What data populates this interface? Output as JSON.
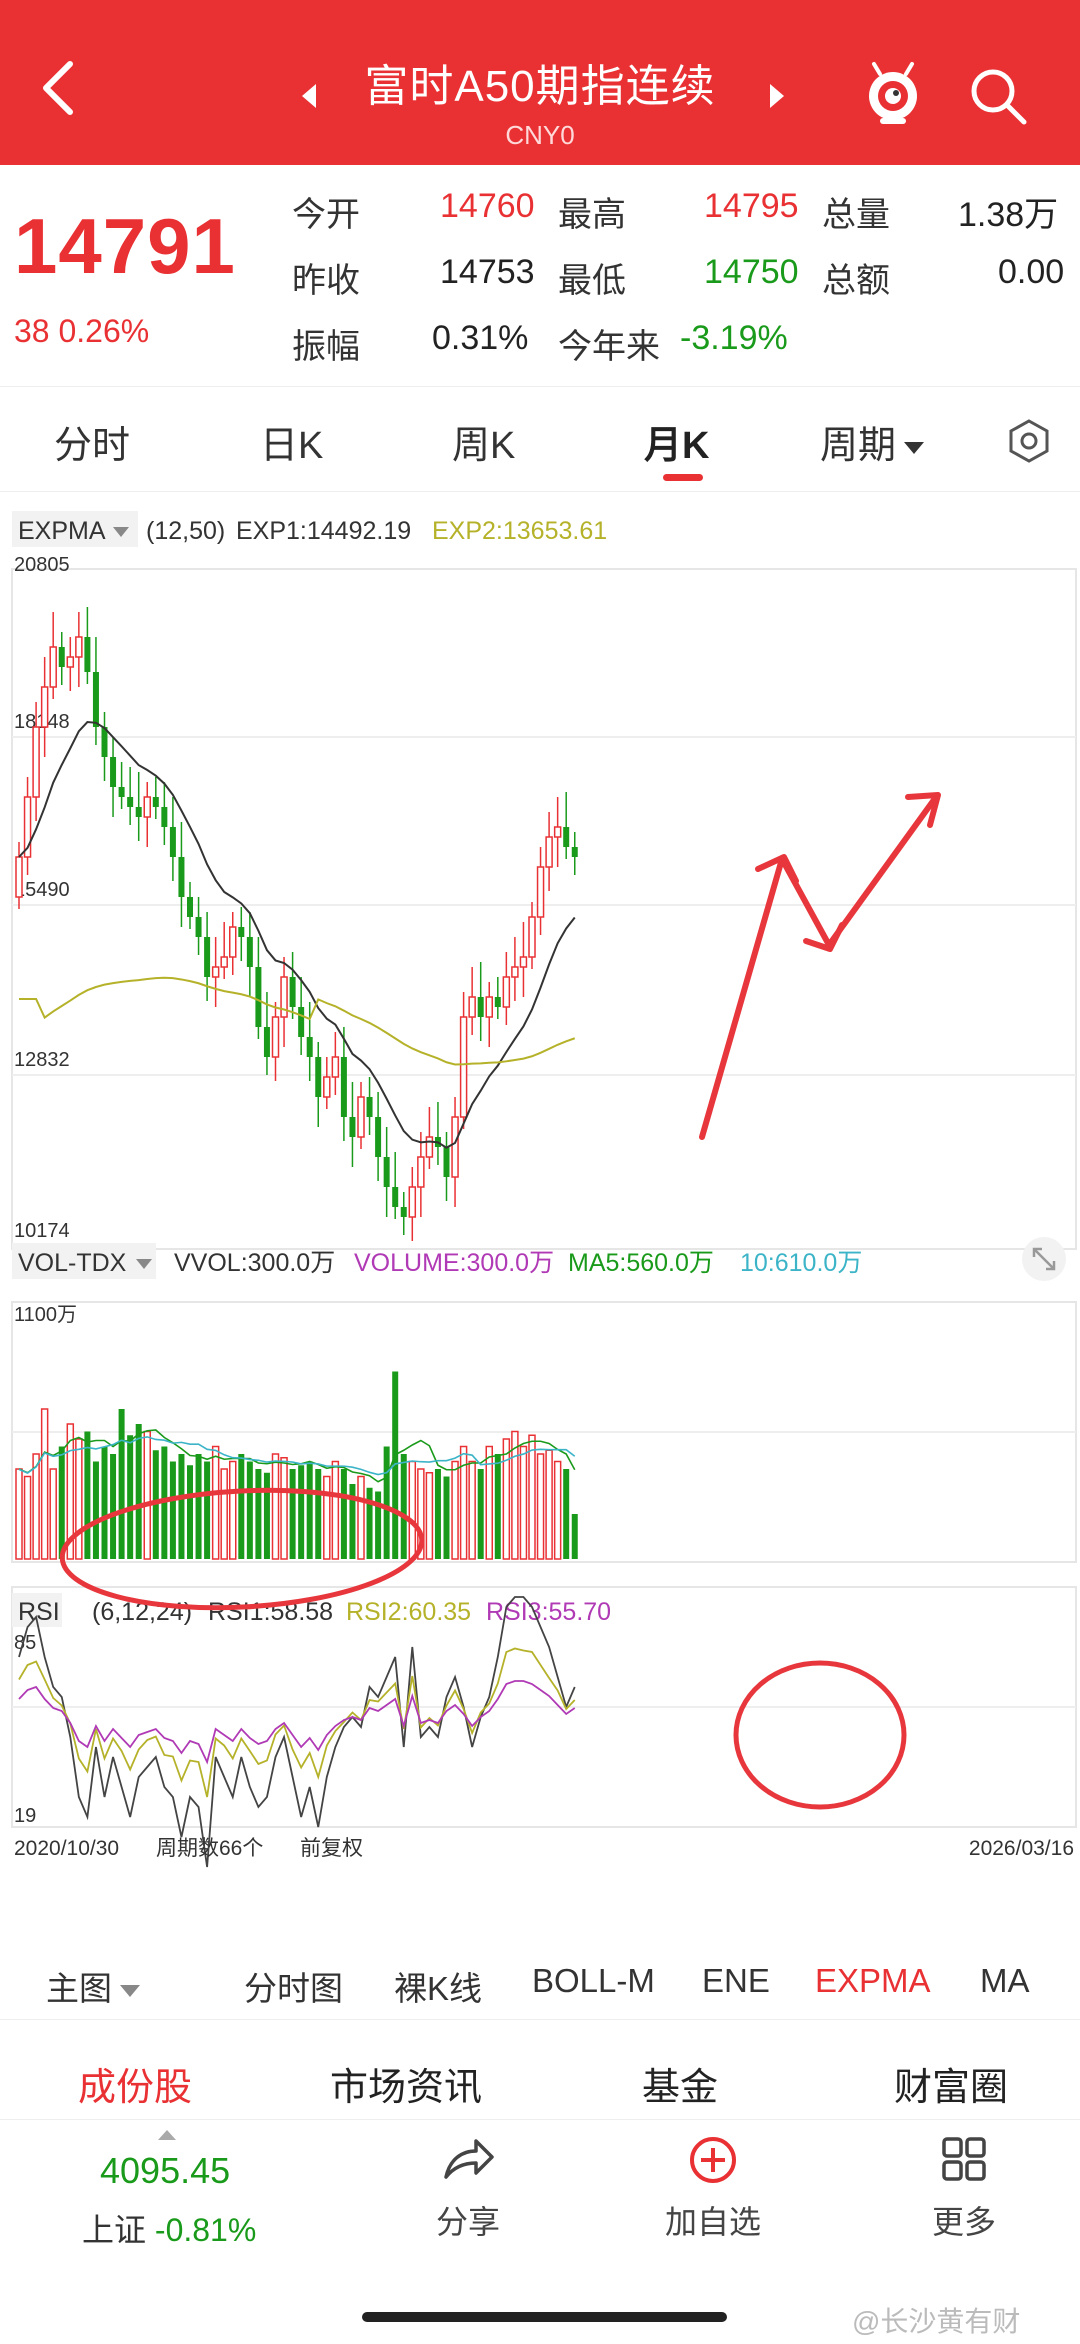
{
  "header": {
    "title": "富时A50期指连续",
    "subtitle": "CNY0",
    "bg": "#e93134"
  },
  "quote": {
    "price": "14791",
    "change": "38 0.26%",
    "rows": [
      [
        {
          "l": "今开",
          "v": "14760",
          "c": "red"
        },
        {
          "l": "最高",
          "v": "14795",
          "c": "red"
        },
        {
          "l": "总量",
          "v": "1.38万",
          "c": "blk"
        }
      ],
      [
        {
          "l": "昨收",
          "v": "14753",
          "c": "blk"
        },
        {
          "l": "最低",
          "v": "14750",
          "c": "green"
        },
        {
          "l": "总额",
          "v": "0.00",
          "c": "blk"
        }
      ],
      [
        {
          "l": "振幅",
          "v": "0.31%",
          "c": "blk"
        },
        {
          "l": "今年来",
          "v": "-3.19%",
          "c": "green"
        }
      ]
    ]
  },
  "tabs": [
    "分时",
    "日K",
    "周K",
    "月K",
    "周期"
  ],
  "chart": {
    "main_indicator": "EXPMA",
    "main_params": "(12,50)",
    "exp1": "EXP1:14492.19",
    "exp2": "EXP2:13653.61",
    "price_ticks": [
      "20805",
      "18148",
      "15490",
      "12832",
      "10174"
    ],
    "vol_indicator": "VOL-TDX",
    "vvol": "VVOL:300.0万",
    "volume": "VOLUME:300.0万",
    "ma5": "MA5:560.0万",
    "ma10": "10:610.0万",
    "vol_tick": "1100万",
    "rsi_indicator": "RSI",
    "rsi_params": "(6,12,24)",
    "rsi1": "RSI1:58.58",
    "rsi2": "RSI2:60.35",
    "rsi3": "RSI3:55.70",
    "rsi_ticks": [
      "85",
      "19"
    ],
    "start_date": "2020/10/30",
    "period_count": "周期数66个",
    "adjust": "前复权",
    "end_date": "2026/03/16",
    "colors": {
      "up": "#e93134",
      "down": "#1a9a1a",
      "exp1": "#333333",
      "exp2": "#b5b22a",
      "rsi1": "#444444",
      "rsi2": "#b5b22a",
      "rsi3": "#b03ab5",
      "ma10": "#3cb4c8"
    }
  },
  "indicators": {
    "main": "主图",
    "items": [
      "分时图",
      "裸K线",
      "BOLL-M",
      "ENE",
      "EXPMA",
      "MA"
    ]
  },
  "sections": [
    "成份股",
    "市场资讯",
    "基金",
    "财富圈"
  ],
  "bottom": {
    "index_value": "4095.45",
    "index_name": "上证",
    "index_change": "-0.81%",
    "share": "分享",
    "add": "加自选",
    "more": "更多"
  },
  "watermark": "@长沙黄有财"
}
